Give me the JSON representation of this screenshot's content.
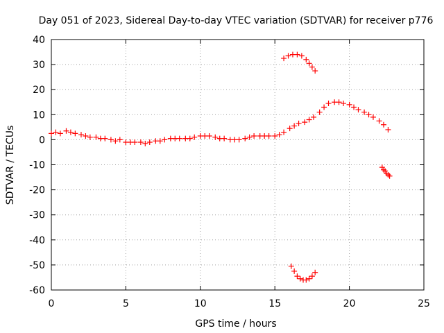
{
  "chart_data": {
    "type": "scatter",
    "title": "Day 051 of 2023, Sidereal Day-to-day VTEC variation (SDTVAR) for receiver p776",
    "xlabel": "GPS time / hours",
    "ylabel": "SDTVAR / TECUs",
    "xlim": [
      0,
      25
    ],
    "ylim": [
      -60,
      40
    ],
    "grid": true,
    "xticks": [
      0,
      5,
      10,
      15,
      20,
      25
    ],
    "yticks": [
      40,
      30,
      20,
      10,
      0,
      -10,
      -20,
      -30,
      -40,
      -50,
      -60
    ],
    "marker": "+",
    "color": "#ff0000",
    "series": [
      {
        "name": "main",
        "x": [
          0.0,
          0.3,
          0.6,
          1.0,
          1.3,
          1.6,
          2.0,
          2.3,
          2.6,
          3.0,
          3.3,
          3.6,
          4.0,
          4.3,
          4.6,
          5.0,
          5.3,
          5.6,
          6.0,
          6.3,
          6.6,
          7.0,
          7.3,
          7.6,
          8.0,
          8.3,
          8.6,
          9.0,
          9.3,
          9.6,
          10.0,
          10.3,
          10.6,
          11.0,
          11.3,
          11.6,
          12.0,
          12.3,
          12.6,
          13.0,
          13.3,
          13.6,
          14.0,
          14.3,
          14.6,
          15.0,
          15.3,
          15.6,
          16.0,
          16.3,
          16.6,
          17.0,
          17.3,
          17.6,
          18.0,
          18.3,
          18.6,
          19.0,
          19.3,
          19.6,
          20.0,
          20.3,
          20.6,
          21.0,
          21.3,
          21.6,
          22.0,
          22.3,
          22.6
        ],
        "y": [
          2.5,
          3.0,
          2.5,
          3.5,
          3.0,
          2.5,
          2.0,
          1.5,
          1.0,
          1.0,
          0.5,
          0.5,
          0.0,
          -0.5,
          0.0,
          -1.0,
          -1.0,
          -1.0,
          -1.0,
          -1.5,
          -1.0,
          -0.5,
          -0.5,
          0.0,
          0.5,
          0.5,
          0.5,
          0.5,
          0.5,
          1.0,
          1.5,
          1.5,
          1.5,
          1.0,
          0.5,
          0.5,
          0.0,
          0.0,
          0.0,
          0.5,
          1.0,
          1.5,
          1.5,
          1.5,
          1.5,
          1.5,
          2.0,
          3.0,
          4.5,
          5.5,
          6.5,
          7.0,
          8.0,
          9.0,
          11.0,
          13.0,
          14.5,
          15.0,
          15.0,
          14.5,
          14.0,
          13.0,
          12.0,
          11.0,
          10.0,
          9.0,
          7.5,
          6.0,
          4.0
        ]
      },
      {
        "name": "arc-upper",
        "x": [
          15.6,
          15.9,
          16.2,
          16.5,
          16.8,
          17.1,
          17.3,
          17.5,
          17.7
        ],
        "y": [
          32.5,
          33.5,
          34.0,
          34.0,
          33.5,
          32.0,
          30.5,
          29.0,
          27.5
        ]
      },
      {
        "name": "arc-lower",
        "x": [
          16.1,
          16.3,
          16.5,
          16.7,
          16.9,
          17.1,
          17.3,
          17.5,
          17.7
        ],
        "y": [
          -50.5,
          -52.5,
          -54.5,
          -55.5,
          -56.0,
          -56.0,
          -55.5,
          -54.5,
          -53.0
        ]
      },
      {
        "name": "segment-right",
        "x": [
          22.2,
          22.3,
          22.4,
          22.5,
          22.6,
          22.7
        ],
        "y": [
          -11.0,
          -12.0,
          -12.5,
          -13.5,
          -14.0,
          -14.5
        ]
      }
    ]
  }
}
